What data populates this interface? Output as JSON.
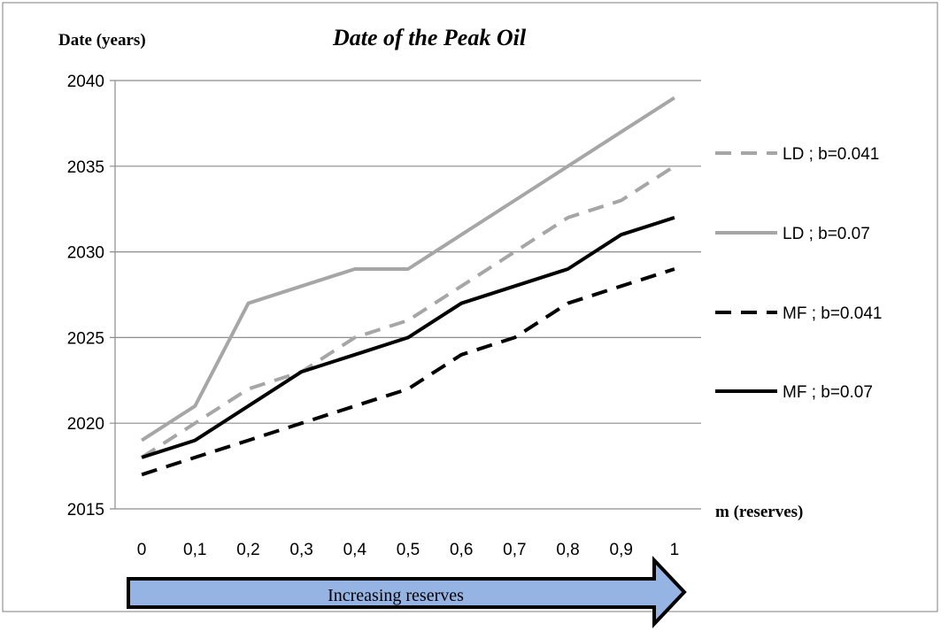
{
  "chart_data": {
    "type": "line",
    "title": "Date of the Peak Oil",
    "ylabel": "Date (years)",
    "xlabel": "m (reserves)",
    "x": [
      "0",
      "0,1",
      "0,2",
      "0,3",
      "0,4",
      "0,5",
      "0,6",
      "0,7",
      "0,8",
      "0,9",
      "1"
    ],
    "ylim": [
      2015,
      2040
    ],
    "yticks": [
      2015,
      2020,
      2025,
      2030,
      2035,
      2040
    ],
    "grid": "horizontal",
    "legend_position": "right",
    "series": [
      {
        "name": "LD ; b=0.041",
        "color": "#a6a6a6",
        "dash": "dashed",
        "values": [
          2018,
          2020,
          2022,
          2023,
          2025,
          2026,
          2028,
          2030,
          2032,
          2033,
          2035
        ]
      },
      {
        "name": "LD ; b=0.07",
        "color": "#a6a6a6",
        "dash": "solid",
        "values": [
          2019,
          2021,
          2027,
          2028,
          2029,
          2029,
          2031,
          2033,
          2035,
          2037,
          2039
        ]
      },
      {
        "name": "MF ; b=0.041",
        "color": "#000000",
        "dash": "dashed",
        "values": [
          2017,
          2018,
          2019,
          2020,
          2021,
          2022,
          2024,
          2025,
          2027,
          2028,
          2029
        ]
      },
      {
        "name": "MF ; b=0.07",
        "color": "#000000",
        "dash": "solid",
        "values": [
          2018,
          2019,
          2021,
          2023,
          2024,
          2025,
          2027,
          2028,
          2029,
          2031,
          2032
        ]
      }
    ],
    "annotations": [
      {
        "text": "Increasing reserves",
        "shape": "arrow-right",
        "fill": "#95b3e3"
      }
    ]
  }
}
